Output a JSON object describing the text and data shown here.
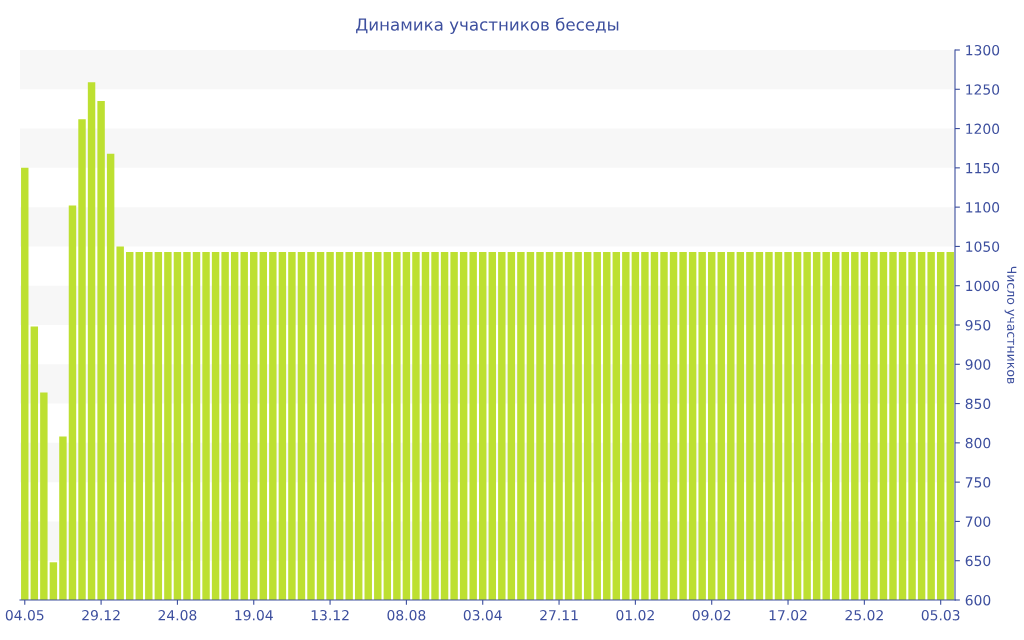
{
  "chart_data": {
    "type": "bar",
    "title": "Динамика участников беседы",
    "ylabel": "Число участников",
    "categories": [
      "04.05",
      null,
      null,
      null,
      null,
      null,
      null,
      null,
      "29.12",
      null,
      null,
      null,
      null,
      null,
      null,
      null,
      "24.08",
      null,
      null,
      null,
      null,
      null,
      null,
      null,
      "19.04",
      null,
      null,
      null,
      null,
      null,
      null,
      null,
      "13.12",
      null,
      null,
      null,
      null,
      null,
      null,
      null,
      "08.08",
      null,
      null,
      null,
      null,
      null,
      null,
      null,
      "03.04",
      null,
      null,
      null,
      null,
      null,
      null,
      null,
      "27.11",
      null,
      null,
      null,
      null,
      null,
      null,
      null,
      "01.02",
      null,
      null,
      null,
      null,
      null,
      null,
      null,
      "09.02",
      null,
      null,
      null,
      null,
      null,
      null,
      null,
      "17.02",
      null,
      null,
      null,
      null,
      null,
      null,
      null,
      "25.02",
      null,
      null,
      null,
      null,
      null,
      null,
      null,
      "05.03",
      null
    ],
    "values": [
      1150,
      948,
      864,
      648,
      808,
      1102,
      1212,
      1259,
      1235,
      1168,
      1050,
      1043,
      1043,
      1043,
      1043,
      1043,
      1043,
      1043,
      1043,
      1043,
      1043,
      1043,
      1043,
      1043,
      1043,
      1043,
      1043,
      1043,
      1043,
      1043,
      1043,
      1043,
      1043,
      1043,
      1043,
      1043,
      1043,
      1043,
      1043,
      1043,
      1043,
      1043,
      1043,
      1043,
      1043,
      1043,
      1043,
      1043,
      1043,
      1043,
      1043,
      1043,
      1043,
      1043,
      1043,
      1043,
      1043,
      1043,
      1043,
      1043,
      1043,
      1043,
      1043,
      1043,
      1043,
      1043,
      1043,
      1043,
      1043,
      1043,
      1043,
      1043,
      1043,
      1043,
      1043,
      1043,
      1043,
      1043,
      1043,
      1043,
      1043,
      1043,
      1043,
      1043,
      1043,
      1043,
      1043,
      1043,
      1043,
      1043,
      1043,
      1043,
      1043,
      1043,
      1043,
      1043,
      1043,
      1043
    ],
    "color": "#bde031",
    "ylim": [
      600,
      1300
    ],
    "yticks": [
      600,
      650,
      700,
      750,
      800,
      850,
      900,
      950,
      1000,
      1050,
      1100,
      1150,
      1200,
      1250,
      1300
    ],
    "bands": [
      {
        "axis": "y",
        "from": 650,
        "to": 700,
        "color": "#f7f7f7"
      },
      {
        "axis": "y",
        "from": 750,
        "to": 800,
        "color": "#f7f7f7"
      },
      {
        "axis": "y",
        "from": 850,
        "to": 900,
        "color": "#f7f7f7"
      },
      {
        "axis": "y",
        "from": 950,
        "to": 1000,
        "color": "#f7f7f7"
      },
      {
        "axis": "y",
        "from": 1050,
        "to": 1100,
        "color": "#f7f7f7"
      },
      {
        "axis": "y",
        "from": 1150,
        "to": 1200,
        "color": "#f7f7f7"
      },
      {
        "axis": "y",
        "from": 1250,
        "to": 1300,
        "color": "#f7f7f7"
      }
    ],
    "grid": false,
    "legend": false
  }
}
